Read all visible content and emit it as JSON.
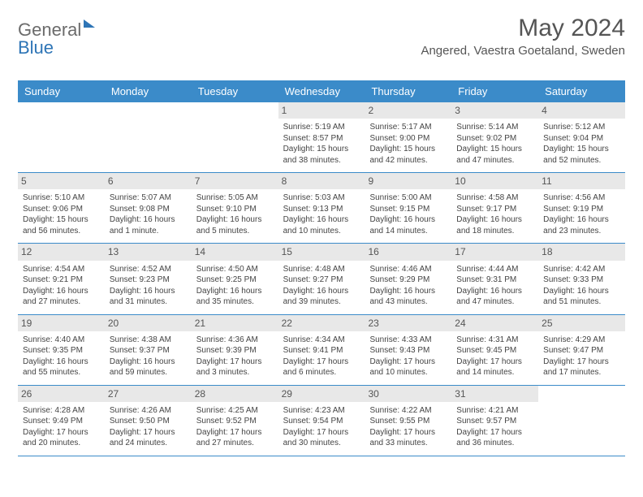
{
  "brand": {
    "name_gray": "General",
    "name_blue": "Blue"
  },
  "title": "May 2024",
  "location": "Angered, Vaestra Goetaland, Sweden",
  "colors": {
    "header_blue": "#3b8bc9",
    "row_border": "#3b8bc9",
    "daynum_bg": "#e8e8e8",
    "text_gray": "#555555",
    "body_text": "#444444",
    "logo_gray": "#6b6b6b",
    "logo_blue": "#2e75b6"
  },
  "day_labels": [
    "Sunday",
    "Monday",
    "Tuesday",
    "Wednesday",
    "Thursday",
    "Friday",
    "Saturday"
  ],
  "weeks": [
    [
      null,
      null,
      null,
      {
        "d": "1",
        "sr": "5:19 AM",
        "ss": "8:57 PM",
        "dl": "15 hours and 38 minutes."
      },
      {
        "d": "2",
        "sr": "5:17 AM",
        "ss": "9:00 PM",
        "dl": "15 hours and 42 minutes."
      },
      {
        "d": "3",
        "sr": "5:14 AM",
        "ss": "9:02 PM",
        "dl": "15 hours and 47 minutes."
      },
      {
        "d": "4",
        "sr": "5:12 AM",
        "ss": "9:04 PM",
        "dl": "15 hours and 52 minutes."
      }
    ],
    [
      {
        "d": "5",
        "sr": "5:10 AM",
        "ss": "9:06 PM",
        "dl": "15 hours and 56 minutes."
      },
      {
        "d": "6",
        "sr": "5:07 AM",
        "ss": "9:08 PM",
        "dl": "16 hours and 1 minute."
      },
      {
        "d": "7",
        "sr": "5:05 AM",
        "ss": "9:10 PM",
        "dl": "16 hours and 5 minutes."
      },
      {
        "d": "8",
        "sr": "5:03 AM",
        "ss": "9:13 PM",
        "dl": "16 hours and 10 minutes."
      },
      {
        "d": "9",
        "sr": "5:00 AM",
        "ss": "9:15 PM",
        "dl": "16 hours and 14 minutes."
      },
      {
        "d": "10",
        "sr": "4:58 AM",
        "ss": "9:17 PM",
        "dl": "16 hours and 18 minutes."
      },
      {
        "d": "11",
        "sr": "4:56 AM",
        "ss": "9:19 PM",
        "dl": "16 hours and 23 minutes."
      }
    ],
    [
      {
        "d": "12",
        "sr": "4:54 AM",
        "ss": "9:21 PM",
        "dl": "16 hours and 27 minutes."
      },
      {
        "d": "13",
        "sr": "4:52 AM",
        "ss": "9:23 PM",
        "dl": "16 hours and 31 minutes."
      },
      {
        "d": "14",
        "sr": "4:50 AM",
        "ss": "9:25 PM",
        "dl": "16 hours and 35 minutes."
      },
      {
        "d": "15",
        "sr": "4:48 AM",
        "ss": "9:27 PM",
        "dl": "16 hours and 39 minutes."
      },
      {
        "d": "16",
        "sr": "4:46 AM",
        "ss": "9:29 PM",
        "dl": "16 hours and 43 minutes."
      },
      {
        "d": "17",
        "sr": "4:44 AM",
        "ss": "9:31 PM",
        "dl": "16 hours and 47 minutes."
      },
      {
        "d": "18",
        "sr": "4:42 AM",
        "ss": "9:33 PM",
        "dl": "16 hours and 51 minutes."
      }
    ],
    [
      {
        "d": "19",
        "sr": "4:40 AM",
        "ss": "9:35 PM",
        "dl": "16 hours and 55 minutes."
      },
      {
        "d": "20",
        "sr": "4:38 AM",
        "ss": "9:37 PM",
        "dl": "16 hours and 59 minutes."
      },
      {
        "d": "21",
        "sr": "4:36 AM",
        "ss": "9:39 PM",
        "dl": "17 hours and 3 minutes."
      },
      {
        "d": "22",
        "sr": "4:34 AM",
        "ss": "9:41 PM",
        "dl": "17 hours and 6 minutes."
      },
      {
        "d": "23",
        "sr": "4:33 AM",
        "ss": "9:43 PM",
        "dl": "17 hours and 10 minutes."
      },
      {
        "d": "24",
        "sr": "4:31 AM",
        "ss": "9:45 PM",
        "dl": "17 hours and 14 minutes."
      },
      {
        "d": "25",
        "sr": "4:29 AM",
        "ss": "9:47 PM",
        "dl": "17 hours and 17 minutes."
      }
    ],
    [
      {
        "d": "26",
        "sr": "4:28 AM",
        "ss": "9:49 PM",
        "dl": "17 hours and 20 minutes."
      },
      {
        "d": "27",
        "sr": "4:26 AM",
        "ss": "9:50 PM",
        "dl": "17 hours and 24 minutes."
      },
      {
        "d": "28",
        "sr": "4:25 AM",
        "ss": "9:52 PM",
        "dl": "17 hours and 27 minutes."
      },
      {
        "d": "29",
        "sr": "4:23 AM",
        "ss": "9:54 PM",
        "dl": "17 hours and 30 minutes."
      },
      {
        "d": "30",
        "sr": "4:22 AM",
        "ss": "9:55 PM",
        "dl": "17 hours and 33 minutes."
      },
      {
        "d": "31",
        "sr": "4:21 AM",
        "ss": "9:57 PM",
        "dl": "17 hours and 36 minutes."
      },
      null
    ]
  ],
  "labels": {
    "sunrise": "Sunrise:",
    "sunset": "Sunset:",
    "daylight": "Daylight:"
  }
}
